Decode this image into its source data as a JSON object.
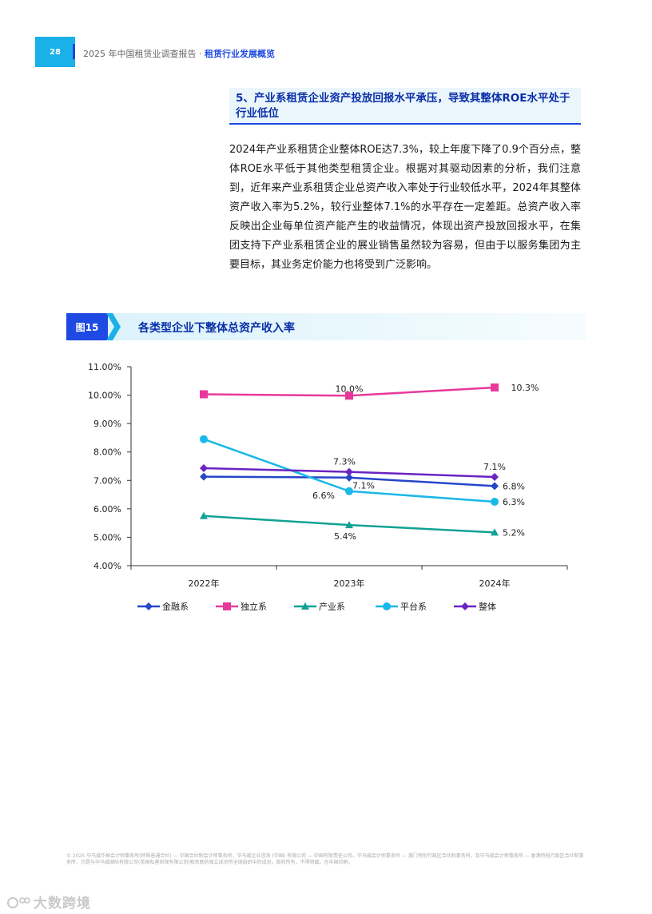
{
  "header": {
    "page_number": "28",
    "report_title": "2025 年中国租赁业调查报告 · ",
    "section_name": "租赁行业发展概览"
  },
  "section": {
    "title": "5、产业系租赁企业资产投放回报水平承压，导致其整体ROE水平处于行业低位",
    "paragraph": "2024年产业系租赁企业整体ROE达7.3%，较上年度下降了0.9个百分点，整体ROE水平低于其他类型租赁企业。根据对其驱动因素的分析，我们注意到，近年来产业系租赁企业总资产收入率处于行业较低水平，2024年其整体资产收入率为5.2%，较行业整体7.1%的水平存在一定差距。总资产收入率反映出企业每单位资产能产生的收益情况，体现出资产投放回报水平，在集团支持下产业系租赁企业的展业销售虽然较为容易，但由于以服务集团为主要目标，其业务定价能力也将受到广泛影响。"
  },
  "figure": {
    "label": "图15",
    "title": "各类型企业下整体总资产收入率"
  },
  "chart_data": {
    "type": "line",
    "title": "",
    "xlabel": "",
    "ylabel": "",
    "categories": [
      "2022年",
      "2023年",
      "2024年"
    ],
    "ylim": [
      4.0,
      11.0
    ],
    "yticks": [
      "4.00%",
      "5.00%",
      "6.00%",
      "7.00%",
      "8.00%",
      "9.00%",
      "10.00%",
      "11.00%"
    ],
    "grid": false,
    "legend_position": "bottom",
    "series": [
      {
        "name": "金融系",
        "color": "#2547c9",
        "marker": "diamond",
        "values": [
          7.13,
          7.1,
          6.8
        ],
        "labels": [
          "",
          "7.1%",
          "6.8%"
        ]
      },
      {
        "name": "独立系",
        "color": "#e8399a",
        "marker": "square",
        "values": [
          10.03,
          9.98,
          10.27
        ],
        "labels": [
          "",
          "10.0%",
          "10.3%"
        ]
      },
      {
        "name": "产业系",
        "color": "#12a295",
        "marker": "triangle",
        "values": [
          5.75,
          5.43,
          5.17
        ],
        "labels": [
          "",
          "5.4%",
          "5.2%"
        ]
      },
      {
        "name": "平台系",
        "color": "#1ab8e8",
        "marker": "circle",
        "values": [
          8.45,
          6.62,
          6.25
        ],
        "labels": [
          "",
          "6.6%",
          "6.3%"
        ]
      },
      {
        "name": "整体",
        "color": "#6a24c2",
        "marker": "diamond",
        "values": [
          7.43,
          7.3,
          7.12
        ],
        "labels": [
          "",
          "7.3%",
          "7.1%"
        ]
      }
    ]
  },
  "footer": {
    "text": "© 2025 毕马威华振会计师事务所(特殊普通合伙) — 中国合伙制会计师事务所，毕马威企业咨询 (中国) 有限公司 — 中国有限责任公司，毕马威会计师事务所 — 澳门特别行政区合伙制事务所，及毕马威会计师事务所 — 香港特别行政区合伙制事务所，均是与毕马威国际有限公司(英国私营担保有限公司)相关联的独立成员所全球组织中的成员。版权所有，不得转载。在中国印刷。"
  },
  "watermark": {
    "text": "大数跨境",
    "icon": "logo-icon"
  }
}
